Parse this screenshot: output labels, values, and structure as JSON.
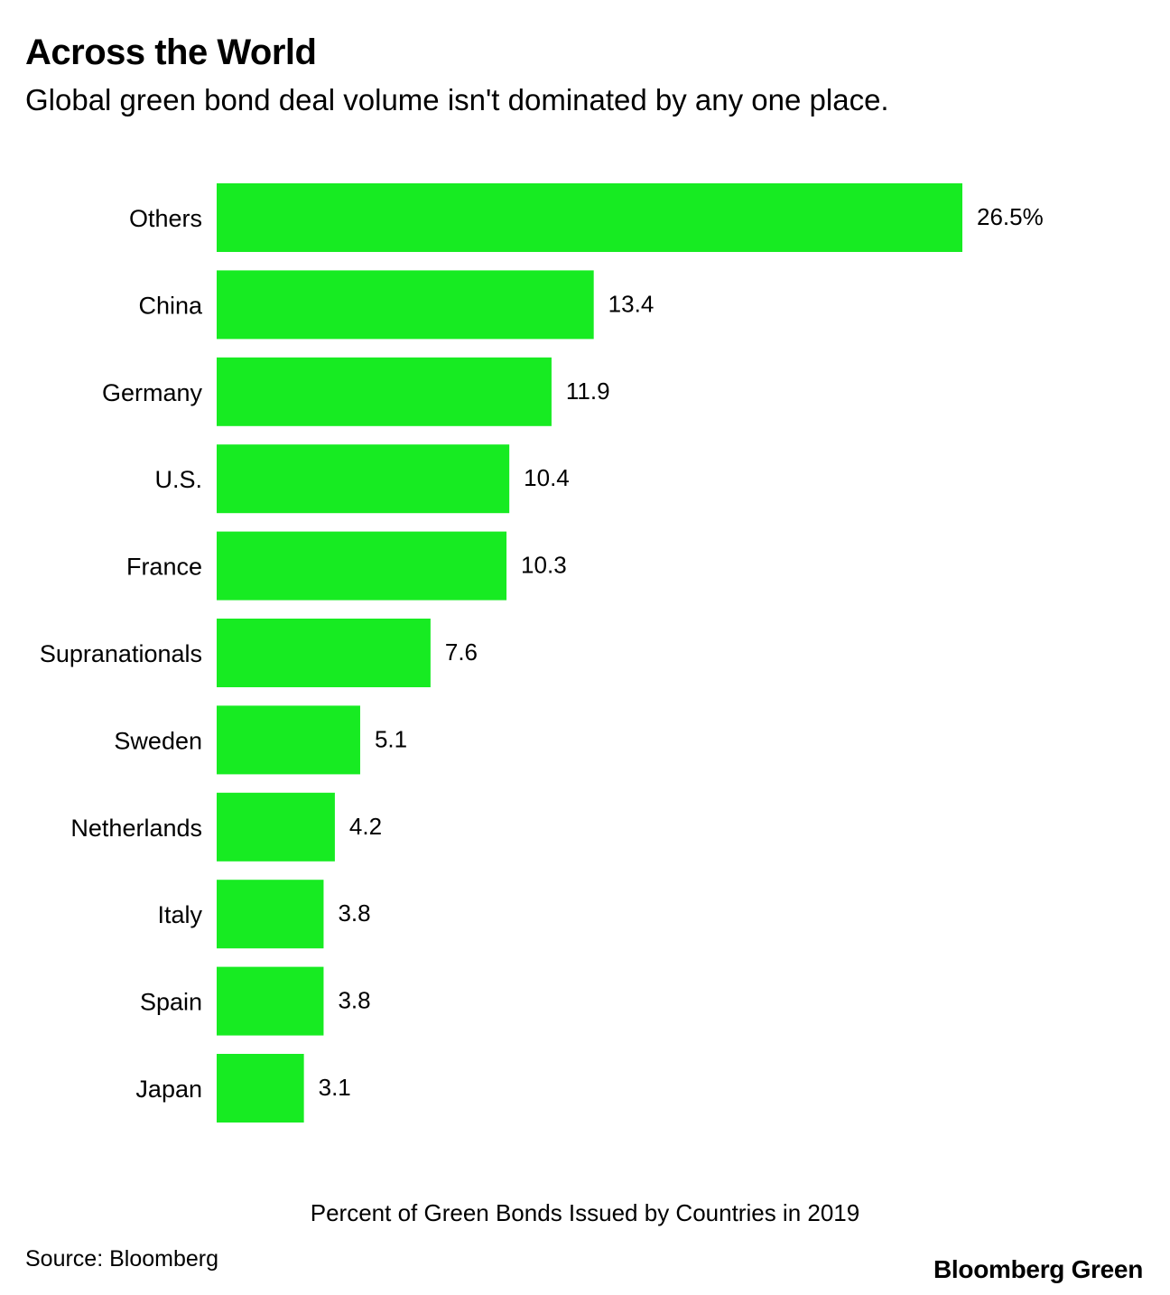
{
  "chart_data": {
    "type": "bar",
    "orientation": "horizontal",
    "title": "Across the World",
    "subtitle": "Global green bond deal volume isn't dominated by any one place.",
    "categories": [
      "Others",
      "China",
      "Germany",
      "U.S.",
      "France",
      "Supranationals",
      "Sweden",
      "Netherlands",
      "Italy",
      "Spain",
      "Japan"
    ],
    "values": [
      26.5,
      13.4,
      11.9,
      10.4,
      10.3,
      7.6,
      5.1,
      4.2,
      3.8,
      3.8,
      3.1
    ],
    "value_labels": [
      "26.5%",
      "13.4",
      "11.9",
      "10.4",
      "10.3",
      "7.6",
      "5.1",
      "4.2",
      "3.8",
      "3.8",
      "3.1"
    ],
    "xlabel": "Percent of Green Bonds Issued by Countries in 2019",
    "ylabel": "",
    "xlim": [
      0,
      26.5
    ],
    "grid": false,
    "bar_color": "#17eb22"
  },
  "footer": {
    "source": "Source: Bloomberg",
    "brand": "Bloomberg Green"
  }
}
